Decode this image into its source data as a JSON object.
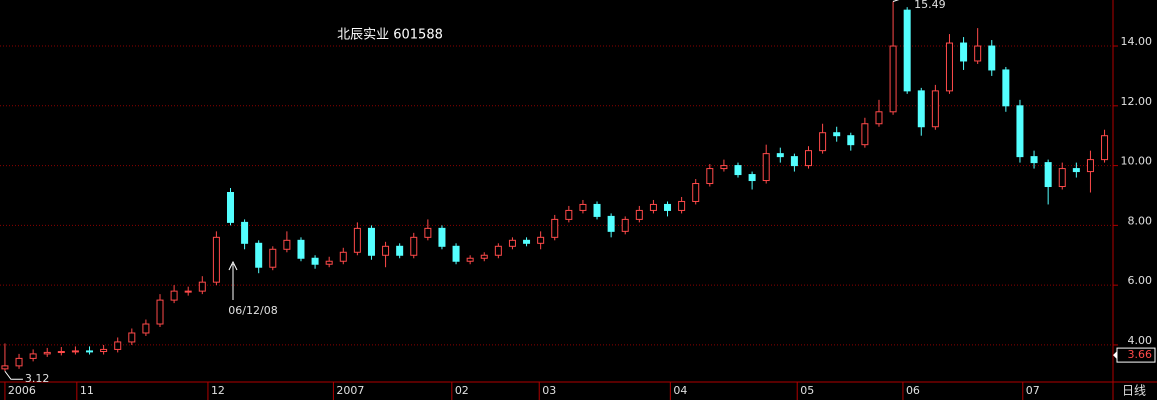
{
  "chart_data": {
    "type": "candlestick",
    "title": "北辰实业 601588",
    "period": "日线",
    "annotation": "06/12/08",
    "up_color": "#ff4a4a",
    "down_color": "#54ffff",
    "grid": true,
    "open": [
      3.2,
      3.3,
      3.55,
      3.7,
      3.75,
      3.78,
      3.8,
      3.78,
      3.85,
      4.1,
      4.4,
      4.7,
      5.5,
      5.8,
      5.8,
      6.1,
      9.1,
      8.1,
      7.4,
      6.6,
      7.2,
      7.5,
      6.9,
      6.7,
      6.8,
      7.1,
      7.9,
      7.0,
      7.3,
      7.0,
      7.6,
      7.9,
      7.3,
      6.8,
      6.9,
      7.0,
      7.3,
      7.5,
      7.4,
      7.6,
      8.2,
      8.5,
      8.7,
      8.3,
      7.8,
      8.2,
      8.5,
      8.7,
      8.5,
      8.8,
      9.4,
      9.9,
      10.0,
      9.7,
      9.5,
      10.4,
      10.3,
      10.0,
      10.5,
      11.1,
      11.0,
      10.7,
      11.4,
      11.8,
      15.2,
      12.5,
      11.3,
      12.5,
      14.1,
      13.5,
      14.0,
      13.2,
      12.0,
      10.3,
      10.1,
      9.3,
      9.9,
      9.8,
      10.2
    ],
    "high": [
      4.05,
      3.7,
      3.85,
      3.9,
      3.93,
      3.95,
      3.95,
      4.0,
      4.25,
      4.55,
      4.85,
      5.7,
      6.0,
      5.95,
      6.3,
      7.8,
      9.25,
      8.2,
      7.5,
      7.3,
      7.8,
      7.6,
      7.0,
      6.95,
      7.25,
      8.1,
      8.0,
      7.45,
      7.4,
      7.75,
      8.2,
      8.0,
      7.4,
      7.0,
      7.1,
      7.4,
      7.6,
      7.6,
      7.8,
      8.35,
      8.65,
      8.85,
      8.8,
      8.4,
      8.3,
      8.65,
      8.85,
      8.8,
      8.95,
      9.55,
      10.05,
      10.2,
      10.1,
      9.8,
      10.7,
      10.6,
      10.4,
      10.65,
      11.4,
      11.3,
      11.1,
      11.6,
      12.2,
      15.49,
      15.3,
      12.6,
      12.7,
      14.4,
      14.3,
      14.6,
      14.2,
      13.3,
      12.2,
      10.5,
      10.2,
      10.1,
      10.1,
      10.5,
      11.2
    ],
    "low": [
      3.12,
      3.2,
      3.45,
      3.6,
      3.65,
      3.68,
      3.68,
      3.68,
      3.75,
      4.0,
      4.3,
      4.6,
      5.4,
      5.65,
      5.7,
      6.0,
      8.0,
      7.2,
      6.4,
      6.5,
      7.1,
      6.8,
      6.55,
      6.6,
      6.7,
      7.0,
      6.85,
      6.6,
      6.9,
      6.9,
      7.5,
      7.2,
      6.7,
      6.7,
      6.8,
      6.9,
      7.2,
      7.3,
      7.2,
      7.5,
      8.1,
      8.4,
      8.2,
      7.6,
      7.7,
      8.1,
      8.4,
      8.3,
      8.4,
      8.7,
      9.3,
      9.8,
      9.6,
      9.2,
      9.4,
      10.1,
      9.8,
      9.9,
      10.4,
      10.8,
      10.5,
      10.6,
      11.3,
      11.7,
      12.4,
      11.0,
      11.2,
      12.4,
      13.2,
      13.4,
      13.0,
      11.8,
      10.1,
      9.9,
      8.7,
      9.2,
      9.6,
      9.1,
      10.1
    ],
    "close": [
      3.3,
      3.55,
      3.7,
      3.75,
      3.78,
      3.8,
      3.78,
      3.85,
      4.1,
      4.4,
      4.7,
      5.5,
      5.8,
      5.8,
      6.1,
      7.6,
      8.1,
      7.4,
      6.6,
      7.2,
      7.5,
      6.9,
      6.7,
      6.8,
      7.1,
      7.9,
      7.0,
      7.3,
      7.0,
      7.6,
      7.9,
      7.3,
      6.8,
      6.9,
      7.0,
      7.3,
      7.5,
      7.4,
      7.6,
      8.2,
      8.5,
      8.7,
      8.3,
      7.8,
      8.2,
      8.5,
      8.7,
      8.5,
      8.8,
      9.4,
      9.9,
      10.0,
      9.7,
      9.5,
      10.4,
      10.3,
      10.0,
      10.5,
      11.1,
      11.0,
      10.7,
      11.4,
      11.8,
      14.0,
      12.5,
      11.3,
      12.5,
      14.1,
      13.5,
      14.0,
      13.2,
      12.0,
      10.3,
      10.1,
      9.3,
      9.9,
      9.8,
      10.2,
      11.0
    ],
    "last_price": 3.66,
    "xlim": [
      -0.35,
      78.6
    ],
    "xticks": [
      {
        "value": 0,
        "label": "2006"
      },
      {
        "value": 5.1,
        "label": "11"
      },
      {
        "value": 14.4,
        "label": "12"
      },
      {
        "value": 23.3,
        "label": "2007"
      },
      {
        "value": 31.7,
        "label": "02"
      },
      {
        "value": 37.9,
        "label": "03"
      },
      {
        "value": 47.2,
        "label": "04"
      },
      {
        "value": 56.2,
        "label": "05"
      },
      {
        "value": 63.7,
        "label": "06"
      },
      {
        "value": 72.2,
        "label": "07"
      }
    ],
    "ylim": [
      2.76,
      15.54
    ],
    "yticks": [
      {
        "value": 4,
        "label": "4.00"
      },
      {
        "value": 6,
        "label": "6.00"
      },
      {
        "value": 8,
        "label": "8.00"
      },
      {
        "value": 10,
        "label": "10.00"
      },
      {
        "value": 12,
        "label": "12.00"
      },
      {
        "value": 14,
        "label": "14.00"
      }
    ]
  }
}
